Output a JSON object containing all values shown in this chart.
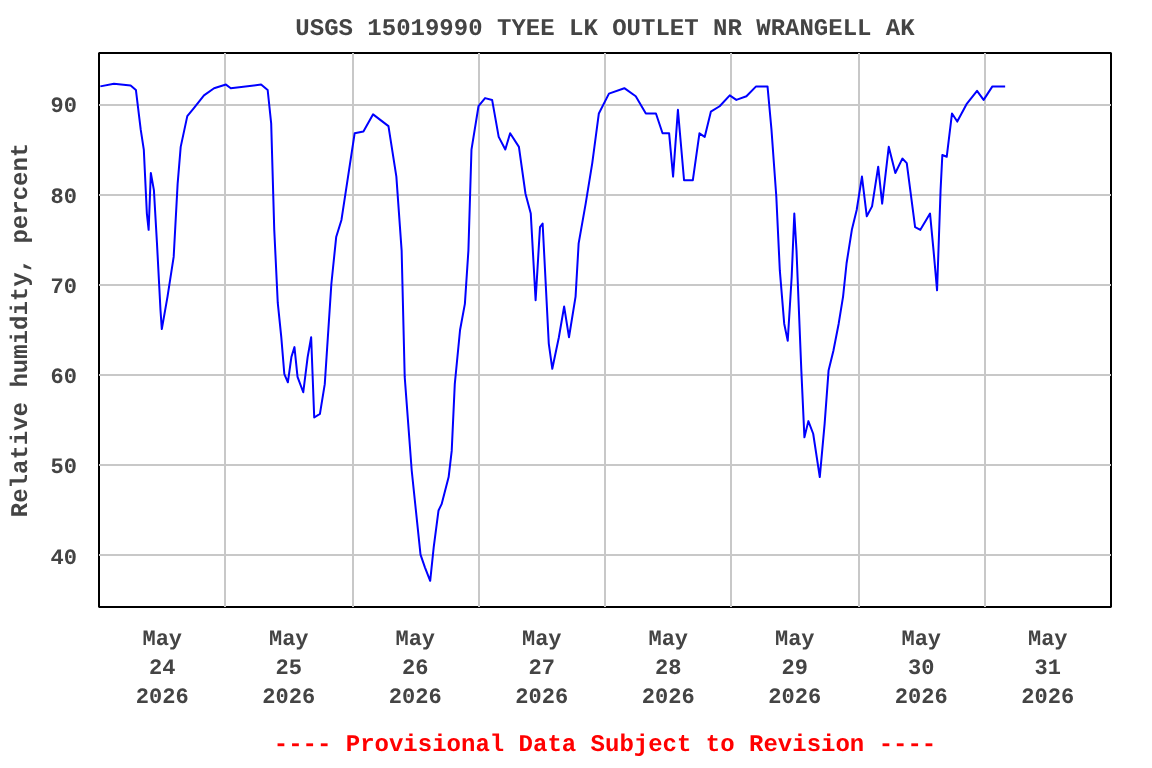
{
  "chart_data": {
    "type": "line",
    "title": "USGS 15019990 TYEE LK OUTLET NR WRANGELL AK",
    "ylabel": "Relative humidity, percent",
    "annotations": [
      "---- Provisional Data Subject to Revision ----"
    ],
    "x": [
      "2026-05-24T00:15",
      "2026-05-24T02:50",
      "2026-05-24T06:00",
      "2026-05-24T07:00",
      "2026-05-24T07:55",
      "2026-05-24T08:30",
      "2026-05-24T09:05",
      "2026-05-24T09:25",
      "2026-05-24T09:50",
      "2026-05-24T10:25",
      "2026-05-24T11:00",
      "2026-05-24T11:40",
      "2026-05-24T11:55",
      "2026-05-24T13:00",
      "2026-05-24T14:10",
      "2026-05-24T14:55",
      "2026-05-24T15:30",
      "2026-05-24T16:45",
      "2026-05-24T18:00",
      "2026-05-24T19:55",
      "2026-05-24T21:50",
      "2026-05-25T00:05",
      "2026-05-25T01:00",
      "2026-05-25T06:45",
      "2026-05-25T08:00",
      "2026-05-25T08:40",
      "2026-05-25T09:15",
      "2026-05-25T09:55",
      "2026-05-25T10:35",
      "2026-05-25T11:10",
      "2026-05-25T11:50",
      "2026-05-25T12:30",
      "2026-05-25T13:05",
      "2026-05-25T13:40",
      "2026-05-25T14:45",
      "2026-05-25T15:35",
      "2026-05-25T16:15",
      "2026-05-25T16:50",
      "2026-05-25T17:55",
      "2026-05-25T18:50",
      "2026-05-25T20:05",
      "2026-05-25T21:00",
      "2026-05-25T22:00",
      "2026-05-25T23:15",
      "2026-05-26T00:30",
      "2026-05-26T02:10",
      "2026-05-26T04:00",
      "2026-05-26T06:55",
      "2026-05-26T08:25",
      "2026-05-26T09:25",
      "2026-05-26T10:00",
      "2026-05-26T11:20",
      "2026-05-26T13:00",
      "2026-05-26T13:50",
      "2026-05-26T14:50",
      "2026-05-26T15:30",
      "2026-05-26T16:25",
      "2026-05-26T17:00",
      "2026-05-26T18:20",
      "2026-05-26T18:55",
      "2026-05-26T19:30",
      "2026-05-26T20:30",
      "2026-05-26T21:25",
      "2026-05-26T22:05",
      "2026-05-26T22:40",
      "2026-05-27T00:00",
      "2026-05-27T01:15",
      "2026-05-27T02:35",
      "2026-05-27T03:50",
      "2026-05-27T05:05",
      "2026-05-27T06:00",
      "2026-05-27T07:40",
      "2026-05-27T08:55",
      "2026-05-27T09:55",
      "2026-05-27T10:50",
      "2026-05-27T11:40",
      "2026-05-27T12:10",
      "2026-05-27T13:20",
      "2026-05-27T14:00",
      "2026-05-27T15:15",
      "2026-05-27T16:15",
      "2026-05-27T17:10",
      "2026-05-27T18:25",
      "2026-05-27T19:00",
      "2026-05-27T20:20",
      "2026-05-27T21:35",
      "2026-05-27T22:50",
      "2026-05-28T00:45",
      "2026-05-28T03:40",
      "2026-05-28T05:50",
      "2026-05-28T07:45",
      "2026-05-28T09:40",
      "2026-05-28T10:55",
      "2026-05-28T12:10",
      "2026-05-28T12:55",
      "2026-05-28T13:50",
      "2026-05-28T15:00",
      "2026-05-28T16:40",
      "2026-05-28T17:55",
      "2026-05-28T18:55",
      "2026-05-28T20:05",
      "2026-05-28T21:45",
      "2026-05-28T23:40",
      "2026-05-29T00:55",
      "2026-05-29T02:50",
      "2026-05-29T04:40",
      "2026-05-29T06:50",
      "2026-05-29T07:35",
      "2026-05-29T08:30",
      "2026-05-29T09:10",
      "2026-05-29T10:00",
      "2026-05-29T10:40",
      "2026-05-29T11:25",
      "2026-05-29T11:55",
      "2026-05-29T12:20",
      "2026-05-29T13:15",
      "2026-05-29T13:50",
      "2026-05-29T14:35",
      "2026-05-29T15:30",
      "2026-05-29T16:45",
      "2026-05-29T17:40",
      "2026-05-29T18:25",
      "2026-05-29T19:20",
      "2026-05-29T20:20",
      "2026-05-29T21:10",
      "2026-05-29T21:50",
      "2026-05-29T22:50",
      "2026-05-29T23:45",
      "2026-05-30T00:45",
      "2026-05-30T01:40",
      "2026-05-30T02:40",
      "2026-05-30T03:50",
      "2026-05-30T04:35",
      "2026-05-30T05:50",
      "2026-05-30T07:05",
      "2026-05-30T08:25",
      "2026-05-30T09:15",
      "2026-05-30T10:50",
      "2026-05-30T11:50",
      "2026-05-30T13:40",
      "2026-05-30T14:20",
      "2026-05-30T15:00",
      "2026-05-30T15:40",
      "2026-05-30T16:00",
      "2026-05-30T16:50",
      "2026-05-30T17:50",
      "2026-05-30T18:50",
      "2026-05-30T20:40",
      "2026-05-30T22:35",
      "2026-05-30T23:50",
      "2026-05-31T01:30",
      "2026-05-31T03:55"
    ],
    "series": [
      {
        "color": "#0000ff",
        "values": [
          92.0,
          92.3,
          92.1,
          91.6,
          87.2,
          85.0,
          77.9,
          76.1,
          82.4,
          80.5,
          74.6,
          67.2,
          65.1,
          68.7,
          73.1,
          81.2,
          85.3,
          88.7,
          89.6,
          91.0,
          91.8,
          92.2,
          91.8,
          92.2,
          91.6,
          87.9,
          76.1,
          68.0,
          64.2,
          60.1,
          59.2,
          62.0,
          63.1,
          59.8,
          58.1,
          62.0,
          64.2,
          55.3,
          55.7,
          59.0,
          70.1,
          75.3,
          77.2,
          82.0,
          86.8,
          87.0,
          88.9,
          87.6,
          82.0,
          73.8,
          59.8,
          49.4,
          40.1,
          38.7,
          37.2,
          40.9,
          45.0,
          45.7,
          48.7,
          51.6,
          59.0,
          65.0,
          67.9,
          73.8,
          85.0,
          89.8,
          90.7,
          90.5,
          86.4,
          85.0,
          86.8,
          85.3,
          80.1,
          77.9,
          68.3,
          76.4,
          76.8,
          63.5,
          60.7,
          64.2,
          67.6,
          64.2,
          68.7,
          74.6,
          79.0,
          83.5,
          89.0,
          91.2,
          91.8,
          90.9,
          89.0,
          89.0,
          86.8,
          86.8,
          82.0,
          89.4,
          81.6,
          81.6,
          86.8,
          86.4,
          89.2,
          89.8,
          91.0,
          90.5,
          90.9,
          92.0,
          92.0,
          87.2,
          79.8,
          71.6,
          65.7,
          63.8,
          70.9,
          77.9,
          73.8,
          60.5,
          53.1,
          54.9,
          53.5,
          48.7,
          54.6,
          60.5,
          62.7,
          65.7,
          68.7,
          72.4,
          76.1,
          78.3,
          82.0,
          77.6,
          78.7,
          83.1,
          79.0,
          85.3,
          82.4,
          84.0,
          83.5,
          76.4,
          76.1,
          77.9,
          73.8,
          69.4,
          80.5,
          84.4,
          84.2,
          89.0,
          88.1,
          90.1,
          91.5,
          90.5,
          92.0,
          92.0
        ]
      }
    ],
    "xlim": [
      "2026-05-24T00:00",
      "2026-06-01T00:00"
    ],
    "xticks": [
      {
        "value": "2026-05-24T12:00",
        "label": "May\n24\n2026"
      },
      {
        "value": "2026-05-25T12:00",
        "label": "May\n25\n2026"
      },
      {
        "value": "2026-05-26T12:00",
        "label": "May\n26\n2026"
      },
      {
        "value": "2026-05-27T12:00",
        "label": "May\n27\n2026"
      },
      {
        "value": "2026-05-28T12:00",
        "label": "May\n28\n2026"
      },
      {
        "value": "2026-05-29T12:00",
        "label": "May\n29\n2026"
      },
      {
        "value": "2026-05-30T12:00",
        "label": "May\n30\n2026"
      },
      {
        "value": "2026-05-31T12:00",
        "label": "May\n31\n2026"
      },
      {
        "value": "2026-05-25",
        "label": null
      },
      {
        "value": "2026-05-26",
        "label": null
      },
      {
        "value": "2026-05-27",
        "label": null
      },
      {
        "value": "2026-05-28",
        "label": null
      },
      {
        "value": "2026-05-29",
        "label": null
      },
      {
        "value": "2026-05-30",
        "label": null
      },
      {
        "value": "2026-05-31",
        "label": null
      }
    ],
    "ylim": [
      34.3,
      95.7
    ],
    "yticks": [
      40,
      50,
      60,
      70,
      80,
      90
    ],
    "grid": true,
    "line_style": "solid"
  }
}
